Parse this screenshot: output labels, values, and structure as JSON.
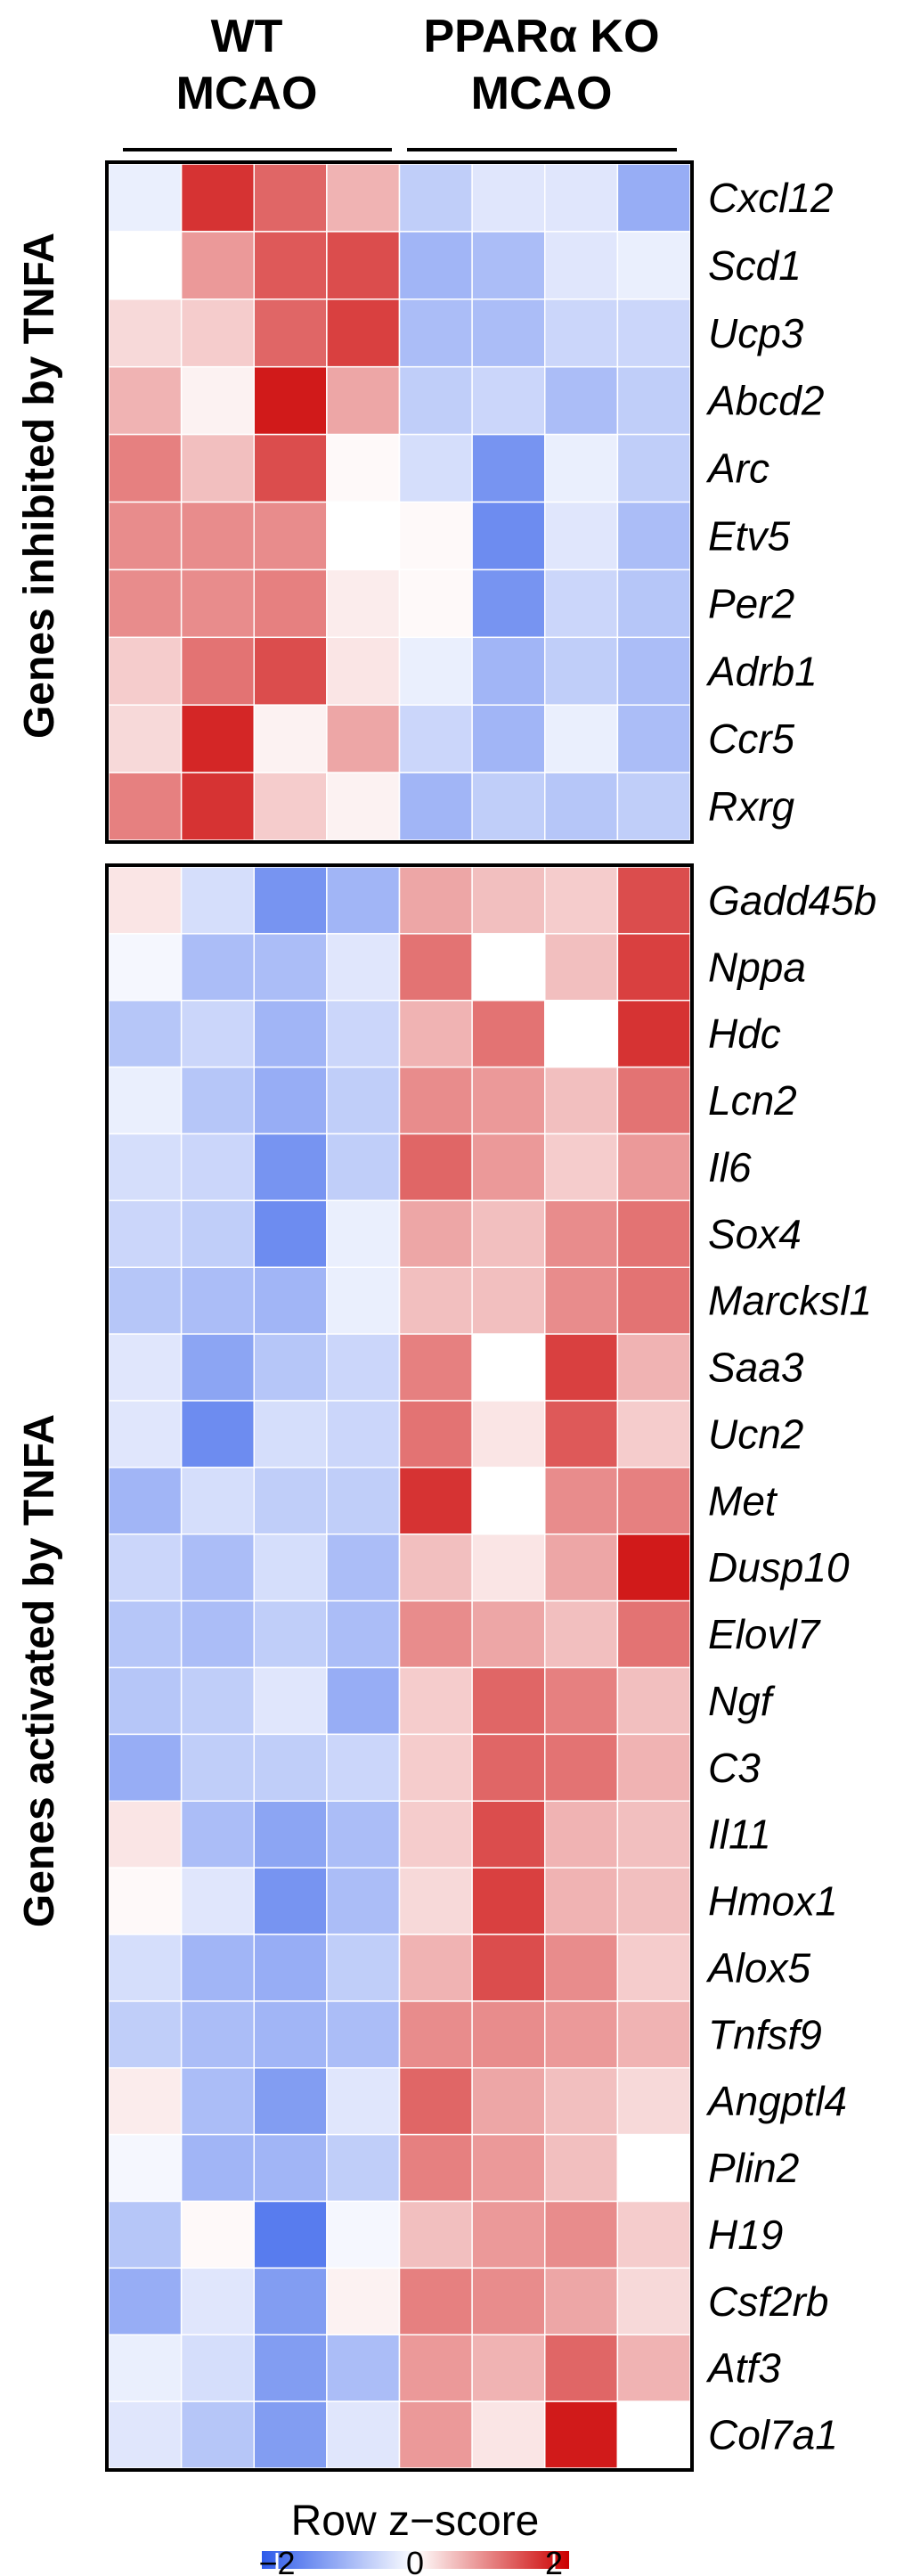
{
  "chart_data": {
    "type": "heatmap",
    "columns_header": {
      "wt_line1": "WT",
      "wt_line2": "MCAO",
      "ko_line1": "PPARα KO",
      "ko_line2": "MCAO"
    },
    "n_columns": 8,
    "color_scale": {
      "low": "#2E5BEA",
      "mid": "#FFFFFF",
      "high": "#CC0000",
      "min": -2,
      "max": 2
    },
    "blocks": [
      {
        "label": "Genes inhibited by TNFA",
        "rows": [
          "Cxcl12",
          "Scd1",
          "Ucp3",
          "Abcd2",
          "Arc",
          "Etv5",
          "Per2",
          "Adrb1",
          "Ccr5",
          "Rxrg"
        ],
        "values": [
          [
            -0.2,
            1.6,
            1.2,
            0.6,
            -0.6,
            -0.3,
            -0.3,
            -1.0
          ],
          [
            0.0,
            0.8,
            1.3,
            1.4,
            -0.9,
            -0.8,
            -0.3,
            -0.2
          ],
          [
            0.3,
            0.4,
            1.2,
            1.5,
            -0.8,
            -0.8,
            -0.5,
            -0.5
          ],
          [
            0.6,
            0.1,
            1.8,
            0.7,
            -0.6,
            -0.5,
            -0.8,
            -0.6
          ],
          [
            1.0,
            0.5,
            1.4,
            0.05,
            -0.4,
            -1.3,
            -0.2,
            -0.6
          ],
          [
            0.9,
            0.9,
            0.9,
            0.0,
            0.05,
            -1.4,
            -0.3,
            -0.8
          ],
          [
            0.9,
            0.9,
            1.0,
            0.15,
            0.05,
            -1.3,
            -0.5,
            -0.7
          ],
          [
            0.4,
            1.1,
            1.4,
            0.2,
            -0.2,
            -0.9,
            -0.6,
            -0.8
          ],
          [
            0.3,
            1.7,
            0.1,
            0.7,
            -0.5,
            -0.9,
            -0.2,
            -0.8
          ],
          [
            1.0,
            1.6,
            0.4,
            0.1,
            -0.9,
            -0.6,
            -0.7,
            -0.6
          ]
        ]
      },
      {
        "label": "Genes activated by TNFA",
        "rows": [
          "Gadd45b",
          "Nppa",
          "Hdc",
          "Lcn2",
          "Il6",
          "Sox4",
          "Marcksl1",
          "Saa3",
          "Ucn2",
          "Met",
          "Dusp10",
          "Elovl7",
          "Ngf",
          "C3",
          "Il11",
          "Hmox1",
          "Alox5",
          "Tnfsf9",
          "Angptl4",
          "Plin2",
          "H19",
          "Csf2rb",
          "Atf3",
          "Col7a1"
        ],
        "values": [
          [
            0.2,
            -0.4,
            -1.3,
            -0.9,
            0.7,
            0.5,
            0.4,
            1.4
          ],
          [
            -0.1,
            -0.8,
            -0.8,
            -0.3,
            1.1,
            0.0,
            0.5,
            1.5
          ],
          [
            -0.7,
            -0.5,
            -0.9,
            -0.5,
            0.6,
            1.1,
            0.0,
            1.6
          ],
          [
            -0.2,
            -0.7,
            -1.0,
            -0.6,
            0.9,
            0.8,
            0.5,
            1.1
          ],
          [
            -0.4,
            -0.5,
            -1.3,
            -0.6,
            1.2,
            0.8,
            0.4,
            0.8
          ],
          [
            -0.5,
            -0.6,
            -1.4,
            -0.2,
            0.7,
            0.5,
            0.9,
            1.1
          ],
          [
            -0.7,
            -0.8,
            -0.9,
            -0.2,
            0.5,
            0.5,
            0.9,
            1.1
          ],
          [
            -0.3,
            -1.1,
            -0.7,
            -0.5,
            1.0,
            0.0,
            1.5,
            0.6
          ],
          [
            -0.3,
            -1.4,
            -0.4,
            -0.5,
            1.1,
            0.2,
            1.3,
            0.4
          ],
          [
            -0.9,
            -0.4,
            -0.6,
            -0.6,
            1.6,
            0.0,
            0.9,
            1.0
          ],
          [
            -0.5,
            -0.8,
            -0.4,
            -0.8,
            0.5,
            0.2,
            0.7,
            1.8
          ],
          [
            -0.7,
            -0.8,
            -0.6,
            -0.8,
            0.9,
            0.7,
            0.5,
            1.1
          ],
          [
            -0.7,
            -0.6,
            -0.3,
            -1.0,
            0.4,
            1.2,
            1.0,
            0.5
          ],
          [
            -1.0,
            -0.6,
            -0.6,
            -0.5,
            0.4,
            1.2,
            1.1,
            0.6
          ],
          [
            0.2,
            -0.8,
            -1.1,
            -0.8,
            0.4,
            1.4,
            0.6,
            0.5
          ],
          [
            0.05,
            -0.3,
            -1.3,
            -0.8,
            0.3,
            1.5,
            0.6,
            0.5
          ],
          [
            -0.4,
            -0.9,
            -1.0,
            -0.6,
            0.6,
            1.4,
            0.9,
            0.4
          ],
          [
            -0.6,
            -0.8,
            -0.9,
            -0.8,
            0.9,
            0.9,
            0.8,
            0.6
          ],
          [
            0.15,
            -0.8,
            -1.2,
            -0.3,
            1.2,
            0.7,
            0.5,
            0.3
          ],
          [
            -0.1,
            -0.9,
            -0.9,
            -0.6,
            1.0,
            0.8,
            0.5,
            0.0
          ],
          [
            -0.7,
            0.05,
            -1.6,
            -0.1,
            0.5,
            0.8,
            0.9,
            0.4
          ],
          [
            -1.0,
            -0.3,
            -1.2,
            0.1,
            1.0,
            0.9,
            0.7,
            0.3
          ],
          [
            -0.2,
            -0.4,
            -1.2,
            -0.8,
            0.8,
            0.6,
            1.2,
            0.6
          ],
          [
            -0.3,
            -0.7,
            -1.2,
            -0.3,
            0.8,
            0.2,
            1.8,
            0.0
          ]
        ]
      }
    ],
    "legend": {
      "title": "Row z−score",
      "ticks": [
        "−2",
        "0",
        "2"
      ],
      "tick_values": [
        -2,
        0,
        2
      ]
    }
  }
}
